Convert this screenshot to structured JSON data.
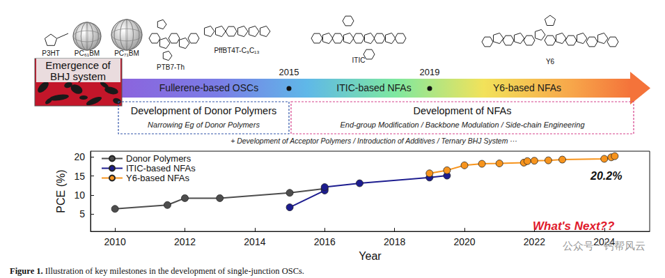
{
  "molecules": [
    "P3HT",
    "PC₆₁BM",
    "PC₇₁BM",
    "PTB7-Th",
    "PffBT4T-C₉C₁₃",
    "ITIC",
    "Y6"
  ],
  "banner": [
    "Emergence of",
    "BHJ system"
  ],
  "timeline": {
    "stages": [
      "Fullerene-based OSCs",
      "ITIC-based NFAs",
      "Y6-based NFAs"
    ],
    "milestones": [
      "2015",
      "2019"
    ]
  },
  "boxes": [
    {
      "title": "Development of Donor Polymers",
      "subtitle": "Narrowing Eg of Donor Polymers"
    },
    {
      "title": "Development of NFAs",
      "subtitle": "End-group Modification / Backbone Modulation / Side-chain Engineering"
    }
  ],
  "note": "+ Development of Acceptor Polymers / Introduction of Additives / Ternary BHJ System ···",
  "caption": {
    "label": "Figure 1.",
    "text": "Illustration of key milestones in the development of single-junction OSCs."
  },
  "watermark": "公众号 · 钙帮风云",
  "chart_data": {
    "type": "line",
    "xlabel": "Year",
    "ylabel": "PCE (%)",
    "xlim": [
      2009.3,
      2025.3
    ],
    "xticks": [
      2010,
      2012,
      2014,
      2016,
      2018,
      2020,
      2022,
      2024
    ],
    "ylim": [
      0.5,
      21.5
    ],
    "yticks": [
      5,
      10,
      15,
      20
    ],
    "grid": false,
    "legend": "upper left",
    "marker": "circle",
    "annotations": [
      "20.2%",
      "What's Next??"
    ],
    "series": [
      {
        "name": "Donor Polymers",
        "color": "#4d4d4d",
        "x": [
          2010,
          2011.5,
          2012,
          2013,
          2015,
          2016
        ],
        "values": [
          6.4,
          7.4,
          9.2,
          9.2,
          10.6,
          11.7
        ]
      },
      {
        "name": "ITIC-based NFAs",
        "color": "#1c1c8f",
        "x": [
          2015,
          2016,
          2016,
          2017,
          2019,
          2019.5
        ],
        "values": [
          6.8,
          11.2,
          12.1,
          13.1,
          14.6,
          15.1
        ]
      },
      {
        "name": "Y6-based NFAs",
        "color": "#f7941d",
        "x": [
          2019,
          2019.5,
          2020,
          2020.5,
          2021,
          2021.7,
          2021.8,
          2022,
          2022.4,
          2022.8,
          2024,
          2024.2,
          2024.3
        ],
        "values": [
          15.7,
          16.5,
          17.8,
          18.2,
          18.3,
          18.5,
          18.9,
          19.0,
          19.1,
          19.3,
          19.5,
          19.9,
          20.2
        ]
      }
    ]
  }
}
